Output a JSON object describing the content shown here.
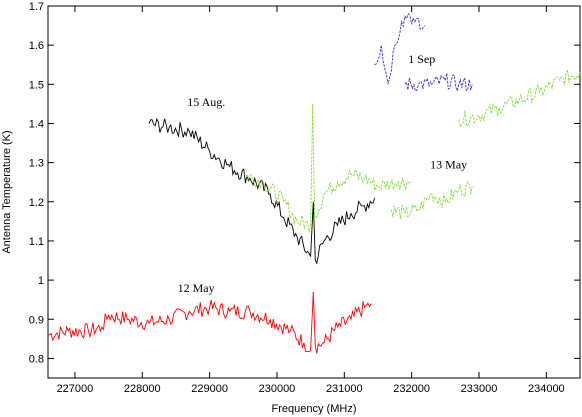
{
  "chart_data": {
    "type": "line",
    "xlabel": "Frequency (MHz)",
    "ylabel": "Antenna Temperature (K)",
    "xlim": [
      226600,
      234500
    ],
    "ylim": [
      0.75,
      1.7
    ],
    "xticks": [
      227000,
      228000,
      229000,
      230000,
      231000,
      232000,
      233000,
      234000
    ],
    "yticks": [
      0.8,
      0.9,
      1.0,
      1.1,
      1.2,
      1.3,
      1.4,
      1.5,
      1.6,
      1.7
    ],
    "ytick_labels": [
      "0.8",
      "0.9",
      "1",
      "1.1",
      "1.2",
      "1.3",
      "1.4",
      "1.5",
      "1.6",
      "1.7"
    ],
    "grid": false,
    "legend": "none",
    "series": [
      {
        "name": "12 May",
        "color": "#ff0000",
        "style": "solid",
        "segments": [
          [
            [
              226600,
              0.86
            ],
            [
              226900,
              0.87
            ],
            [
              227200,
              0.87
            ],
            [
              227400,
              0.88
            ],
            [
              227500,
              0.91
            ],
            [
              227800,
              0.9
            ],
            [
              228100,
              0.89
            ],
            [
              228400,
              0.9
            ],
            [
              228700,
              0.92
            ],
            [
              229000,
              0.93
            ],
            [
              229300,
              0.92
            ],
            [
              229600,
              0.92
            ],
            [
              229900,
              0.9
            ],
            [
              230200,
              0.87
            ],
            [
              230400,
              0.84
            ],
            [
              230500,
              0.82
            ],
            [
              230540,
              0.97
            ],
            [
              230570,
              0.83
            ],
            [
              230700,
              0.84
            ],
            [
              230900,
              0.88
            ],
            [
              231100,
              0.9
            ],
            [
              231300,
              0.93
            ],
            [
              231400,
              0.94
            ]
          ]
        ]
      },
      {
        "name": "15 Aug.",
        "color": "#000000",
        "style": "solid",
        "segments": [
          [
            [
              228100,
              1.4
            ],
            [
              228400,
              1.39
            ],
            [
              228700,
              1.38
            ],
            [
              229000,
              1.33
            ],
            [
              229300,
              1.29
            ],
            [
              229600,
              1.26
            ],
            [
              229900,
              1.22
            ],
            [
              230100,
              1.16
            ],
            [
              230300,
              1.11
            ],
            [
              230500,
              1.06
            ],
            [
              230540,
              1.2
            ],
            [
              230570,
              1.05
            ],
            [
              230700,
              1.1
            ],
            [
              230900,
              1.14
            ],
            [
              231100,
              1.17
            ],
            [
              231300,
              1.19
            ],
            [
              231450,
              1.21
            ]
          ]
        ]
      },
      {
        "name": "13 May",
        "color": "#7fdd3a",
        "style": "dashed",
        "segments": [
          [
            [
              229500,
              1.27
            ],
            [
              229800,
              1.25
            ],
            [
              230100,
              1.2
            ],
            [
              230300,
              1.15
            ],
            [
              230500,
              1.14
            ],
            [
              230530,
              1.45
            ],
            [
              230560,
              1.16
            ],
            [
              230700,
              1.22
            ],
            [
              230900,
              1.25
            ],
            [
              231100,
              1.27
            ],
            [
              231300,
              1.26
            ],
            [
              231500,
              1.24
            ],
            [
              231800,
              1.25
            ],
            [
              232000,
              1.25
            ]
          ],
          [
            [
              231700,
              1.18
            ],
            [
              231900,
              1.17
            ],
            [
              232100,
              1.18
            ],
            [
              232300,
              1.22
            ],
            [
              232500,
              1.2
            ],
            [
              232700,
              1.23
            ],
            [
              232900,
              1.24
            ]
          ],
          [
            [
              232700,
              1.41
            ],
            [
              233000,
              1.42
            ],
            [
              233300,
              1.44
            ],
            [
              233600,
              1.46
            ],
            [
              233900,
              1.48
            ],
            [
              234200,
              1.51
            ],
            [
              234500,
              1.53
            ]
          ]
        ]
      },
      {
        "name": "1 Sep",
        "color": "#3a2bd6",
        "style": "dashed",
        "segments": [
          [
            [
              231450,
              1.55
            ],
            [
              231550,
              1.6
            ],
            [
              231650,
              1.5
            ],
            [
              231750,
              1.6
            ],
            [
              231850,
              1.66
            ],
            [
              231950,
              1.68
            ],
            [
              232050,
              1.66
            ],
            [
              232150,
              1.64
            ],
            [
              232200,
              1.65
            ]
          ],
          [
            [
              231900,
              1.5
            ],
            [
              232100,
              1.5
            ],
            [
              232300,
              1.5
            ],
            [
              232500,
              1.51
            ],
            [
              232700,
              1.5
            ],
            [
              232900,
              1.5
            ]
          ]
        ]
      }
    ],
    "annotations": [
      {
        "text": "15 Aug.",
        "x": 228950,
        "y": 1.445
      },
      {
        "text": "1 Sep",
        "x": 232150,
        "y": 1.555
      },
      {
        "text": "13 May",
        "x": 232550,
        "y": 1.285
      },
      {
        "text": "12 May",
        "x": 228800,
        "y": 0.97
      }
    ]
  }
}
